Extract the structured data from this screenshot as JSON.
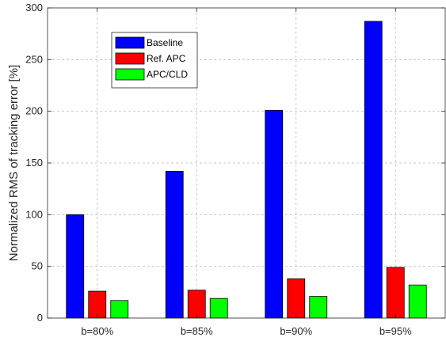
{
  "chart_data": {
    "type": "bar",
    "categories": [
      "b=80%",
      "b=85%",
      "b=90%",
      "b=95%"
    ],
    "series": [
      {
        "name": "Baseline",
        "color": "#0000ff",
        "values": [
          100,
          142,
          201,
          287
        ]
      },
      {
        "name": "Ref. APC",
        "color": "#ff0000",
        "values": [
          26,
          27,
          38,
          49
        ]
      },
      {
        "name": "APC/CLD",
        "color": "#00ff00",
        "values": [
          17,
          19,
          21,
          32
        ]
      }
    ],
    "ylabel": "Normalized RMS of tracking error [%]",
    "xlabel": "",
    "title": "",
    "ylim": [
      0,
      300
    ],
    "yticks": [
      0,
      50,
      100,
      150,
      200,
      250,
      300
    ],
    "grid": true,
    "legend_position": "top-left"
  }
}
